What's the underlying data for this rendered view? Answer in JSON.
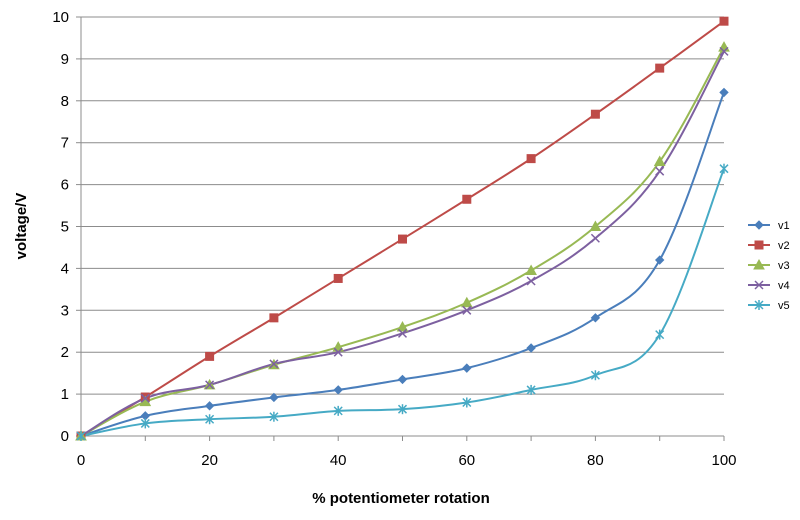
{
  "chart_data": {
    "type": "line",
    "title": "",
    "xlabel": "% potentiometer rotation",
    "ylabel": "voltage/V",
    "x": [
      0,
      10,
      20,
      30,
      40,
      50,
      60,
      70,
      80,
      90,
      100
    ],
    "xlim": [
      0,
      100
    ],
    "ylim": [
      0,
      10
    ],
    "x_ticks": [
      "0",
      "20",
      "40",
      "60",
      "80",
      "100"
    ],
    "y_ticks": [
      "0",
      "1",
      "2",
      "3",
      "4",
      "5",
      "6",
      "7",
      "8",
      "9",
      "10"
    ],
    "grid": "horizontal",
    "legend_position": "right",
    "series": [
      {
        "name": "v1",
        "color": "#4a7ebb",
        "marker": "diamond",
        "values": [
          0,
          0.48,
          0.72,
          0.92,
          1.1,
          1.35,
          1.62,
          2.1,
          2.82,
          4.2,
          8.2
        ]
      },
      {
        "name": "v2",
        "color": "#be4b48",
        "marker": "square",
        "values": [
          0,
          0.93,
          1.9,
          2.82,
          3.76,
          4.7,
          5.65,
          6.62,
          7.68,
          8.78,
          9.9
        ]
      },
      {
        "name": "v3",
        "color": "#98b954",
        "marker": "triangle",
        "values": [
          0,
          0.82,
          1.22,
          1.7,
          2.12,
          2.6,
          3.18,
          3.95,
          5.0,
          6.55,
          9.28
        ]
      },
      {
        "name": "v4",
        "color": "#7d60a0",
        "marker": "x",
        "values": [
          0,
          0.9,
          1.22,
          1.72,
          2.0,
          2.45,
          3.0,
          3.7,
          4.72,
          6.32,
          9.18
        ]
      },
      {
        "name": "v5",
        "color": "#46aac5",
        "marker": "star",
        "values": [
          0,
          0.3,
          0.4,
          0.46,
          0.6,
          0.64,
          0.8,
          1.1,
          1.45,
          2.42,
          6.38
        ]
      }
    ]
  }
}
